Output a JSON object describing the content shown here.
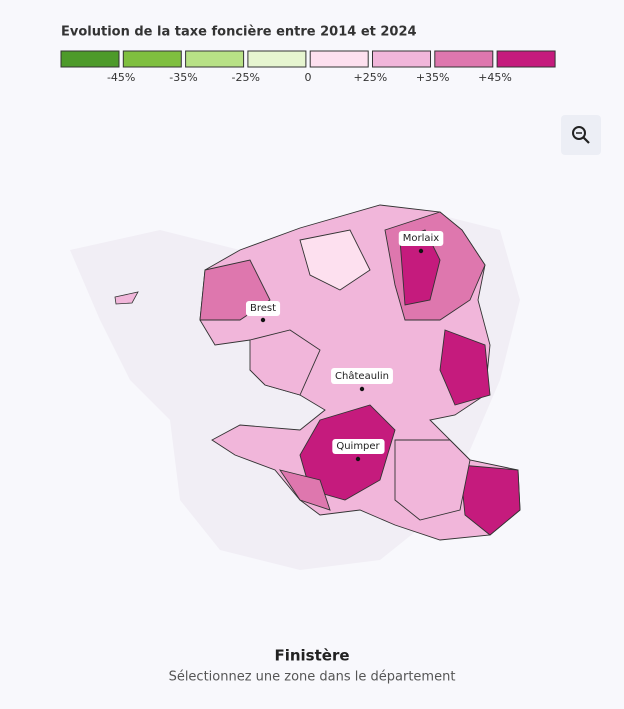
{
  "legend": {
    "title": "Evolution de la taxe foncière entre 2014 et 2024",
    "colors": [
      "#4d9a2a",
      "#7fbf3f",
      "#b8e186",
      "#e6f5d0",
      "#fde0ef",
      "#f1b6da",
      "#de77ae",
      "#c51b7d"
    ],
    "labels": [
      "-45%",
      "-35%",
      "-25%",
      "0",
      "+25%",
      "+35%",
      "+45%"
    ]
  },
  "cities": [
    {
      "label": "Morlaix"
    },
    {
      "label": "Brest"
    },
    {
      "label": "Châteaulin"
    },
    {
      "label": "Quimper"
    }
  ],
  "footer": {
    "title": "Finistère",
    "subtitle": "Sélectionnez une zone dans le département"
  }
}
